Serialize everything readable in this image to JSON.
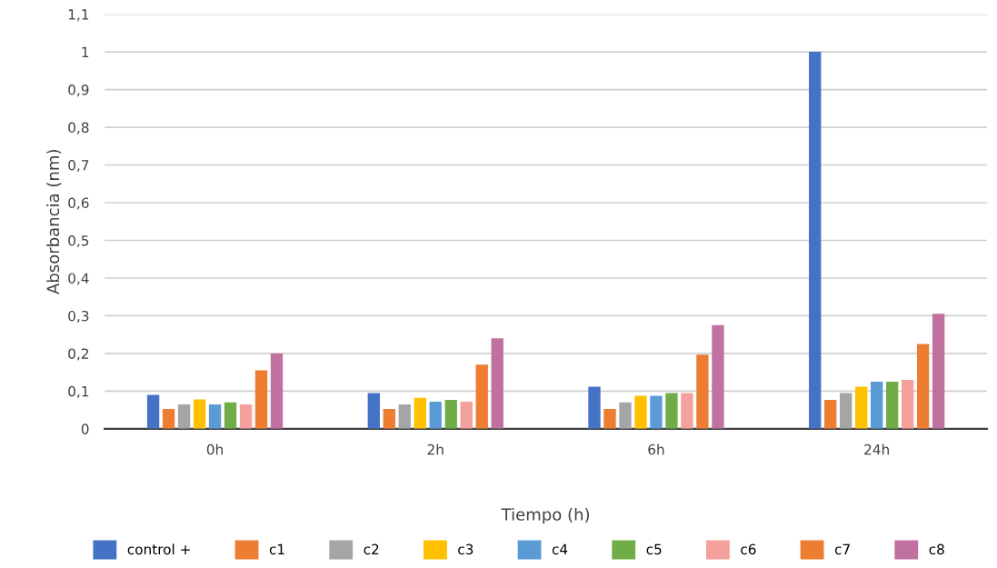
{
  "chart_data": {
    "type": "bar",
    "xlabel": "Tiempo (h)",
    "ylabel": "Absorbancia (nm)",
    "categories": [
      "0h",
      "2h",
      "6h",
      "24h"
    ],
    "series": [
      {
        "name": "control +",
        "color": "#4472c4",
        "values": [
          0.09,
          0.095,
          0.112,
          1.0
        ]
      },
      {
        "name": "c1",
        "color": "#ed7d31",
        "values": [
          0.053,
          0.053,
          0.053,
          0.077
        ]
      },
      {
        "name": "c2",
        "color": "#a5a5a5",
        "values": [
          0.065,
          0.065,
          0.07,
          0.095
        ]
      },
      {
        "name": "c3",
        "color": "#ffc000",
        "values": [
          0.078,
          0.082,
          0.088,
          0.112
        ]
      },
      {
        "name": "c4",
        "color": "#5b9bd5",
        "values": [
          0.065,
          0.072,
          0.088,
          0.125
        ]
      },
      {
        "name": "c5",
        "color": "#70ad47",
        "values": [
          0.07,
          0.077,
          0.095,
          0.125
        ]
      },
      {
        "name": "c6",
        "color": "#f4a09c",
        "values": [
          0.065,
          0.072,
          0.095,
          0.13
        ]
      },
      {
        "name": "c7",
        "color": "#ed7d31",
        "values": [
          0.155,
          0.17,
          0.197,
          0.225
        ]
      },
      {
        "name": "c8",
        "color": "#c071a0",
        "values": [
          0.2,
          0.24,
          0.275,
          0.305
        ]
      }
    ],
    "ylim": [
      0,
      1.1
    ],
    "yticks": [
      0,
      {
        "value": 0.1,
        "label": "0,1"
      },
      {
        "value": 0.2,
        "label": "0,2"
      },
      {
        "value": 0.3,
        "label": "0,3"
      },
      {
        "value": 0.4,
        "label": "0,4"
      },
      {
        "value": 0.5,
        "label": "0,5"
      },
      {
        "value": 0.6,
        "label": "0,6"
      },
      {
        "value": 0.7,
        "label": "0,7"
      },
      {
        "value": 0.8,
        "label": "0,8"
      },
      {
        "value": 0.9,
        "label": "0,9"
      },
      1,
      {
        "value": 1.1,
        "label": "1,1"
      }
    ],
    "grid": "y",
    "legend": "bottom"
  }
}
